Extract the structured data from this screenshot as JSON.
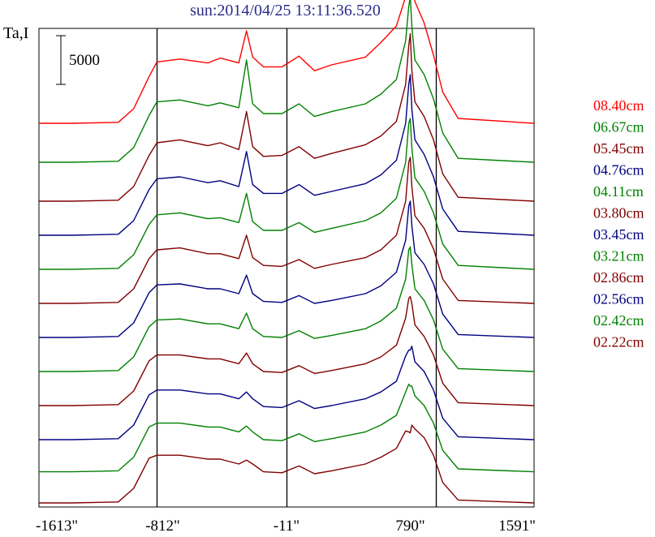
{
  "chart_data": {
    "type": "line",
    "title": "sun:2014/04/25 13:11:36.520",
    "ylabel": "Ta,I",
    "xlabel": "",
    "x_ticks": [
      "-1613\"",
      "-812\"",
      "-11\"",
      "790\"",
      "1591\""
    ],
    "x_tick_values": [
      -1613,
      -812,
      -11,
      790,
      1591
    ],
    "xlim": [
      -1613,
      1591
    ],
    "vertical_markers": [
      -850,
      -11,
      955
    ],
    "scale_bar": {
      "label": "5000",
      "value": 5000
    },
    "legend_placement": "right",
    "colors": {
      "red": "#ff0000",
      "green": "#008000",
      "darkred": "#800000",
      "blue": "#000080"
    },
    "profile_x": [
      -1613,
      -1400,
      -1100,
      -1000,
      -900,
      -850,
      -700,
      -520,
      -440,
      -320,
      -270,
      -230,
      -160,
      -40,
      70,
      170,
      280,
      500,
      600,
      700,
      760,
      780,
      790,
      800,
      820,
      880,
      940,
      1000,
      1100,
      1591
    ],
    "series": [
      {
        "name": "08.40cm",
        "color": "#ff0000",
        "offset": 39000,
        "y": [
          0,
          0,
          100,
          1500,
          4800,
          6300,
          6600,
          6200,
          6700,
          6200,
          9500,
          6800,
          5800,
          5800,
          6900,
          5400,
          6000,
          6800,
          8300,
          10000,
          13000,
          15800,
          16100,
          14800,
          12500,
          10300,
          7000,
          3200,
          500,
          0
        ]
      },
      {
        "name": "06.67cm",
        "color": "#008000",
        "offset": 35000,
        "y": [
          0,
          0,
          100,
          1500,
          4800,
          6200,
          6400,
          5800,
          6100,
          5600,
          10500,
          6000,
          5000,
          5000,
          6000,
          4700,
          5200,
          6000,
          7000,
          8500,
          12500,
          16000,
          17000,
          14000,
          10500,
          9000,
          6500,
          3000,
          400,
          0
        ]
      },
      {
        "name": "05.45cm",
        "color": "#800000",
        "offset": 31000,
        "y": [
          0,
          0,
          100,
          1500,
          4700,
          6000,
          6300,
          5700,
          6000,
          5300,
          9200,
          5600,
          4600,
          4700,
          5600,
          4400,
          4900,
          5800,
          6700,
          8200,
          12000,
          16000,
          17200,
          13500,
          10200,
          8700,
          6300,
          2800,
          400,
          0
        ]
      },
      {
        "name": "04.76cm",
        "color": "#000080",
        "offset": 27500,
        "y": [
          0,
          0,
          100,
          1500,
          4700,
          5800,
          6000,
          5400,
          5600,
          5000,
          8600,
          5200,
          4300,
          4300,
          5200,
          4100,
          4500,
          5300,
          6200,
          7700,
          11500,
          15500,
          16500,
          13000,
          9800,
          8300,
          6000,
          2700,
          400,
          0
        ]
      },
      {
        "name": "04.11cm",
        "color": "#008000",
        "offset": 24000,
        "y": [
          0,
          0,
          100,
          1500,
          4600,
          5600,
          5800,
          5200,
          5300,
          4800,
          7800,
          4900,
          4000,
          4000,
          4800,
          3800,
          4200,
          5000,
          5800,
          7300,
          11000,
          15000,
          15500,
          12500,
          9400,
          8000,
          5800,
          2600,
          400,
          0
        ]
      },
      {
        "name": "03.80cm",
        "color": "#800000",
        "offset": 20500,
        "y": [
          0,
          0,
          100,
          1500,
          4600,
          5500,
          5700,
          5100,
          5100,
          4600,
          7000,
          4700,
          3900,
          3800,
          4500,
          3600,
          4000,
          4700,
          5500,
          7000,
          10500,
          14500,
          15000,
          12000,
          9000,
          7700,
          5600,
          2500,
          300,
          0
        ]
      },
      {
        "name": "03.45cm",
        "color": "#000080",
        "offset": 17000,
        "y": [
          0,
          0,
          100,
          1500,
          4600,
          5400,
          5500,
          5000,
          5000,
          4500,
          6400,
          4500,
          3700,
          3600,
          4300,
          3500,
          3800,
          4500,
          5300,
          6700,
          10000,
          13500,
          14000,
          11500,
          8700,
          7500,
          5500,
          2400,
          300,
          0
        ]
      },
      {
        "name": "03.21cm",
        "color": "#008000",
        "offset": 13500,
        "y": [
          0,
          0,
          100,
          1500,
          4600,
          5300,
          5400,
          4900,
          4900,
          4400,
          6000,
          4400,
          3600,
          3500,
          4200,
          3400,
          3700,
          4400,
          5200,
          6500,
          9500,
          12500,
          12800,
          11000,
          8500,
          7300,
          5300,
          2300,
          300,
          0
        ]
      },
      {
        "name": "02.86cm",
        "color": "#800000",
        "offset": 10000,
        "y": [
          0,
          0,
          100,
          1500,
          4600,
          5200,
          5200,
          4800,
          4800,
          4300,
          5400,
          4300,
          3500,
          3400,
          4100,
          3300,
          3600,
          4300,
          5000,
          6200,
          9000,
          11000,
          11200,
          10500,
          8300,
          7100,
          5200,
          2300,
          300,
          0
        ]
      },
      {
        "name": "02.56cm",
        "color": "#000080",
        "offset": 6500,
        "y": [
          0,
          0,
          100,
          1500,
          4600,
          5100,
          5100,
          4700,
          4700,
          4200,
          4900,
          4200,
          3400,
          3300,
          4000,
          3200,
          3500,
          4200,
          4900,
          6000,
          8600,
          9200,
          9200,
          9600,
          8000,
          7000,
          5100,
          2200,
          300,
          0
        ]
      },
      {
        "name": "02.42cm",
        "color": "#008000",
        "offset": 3200,
        "y": [
          0,
          0,
          100,
          1500,
          4600,
          5000,
          5000,
          4600,
          4600,
          4100,
          4700,
          4100,
          3300,
          3200,
          3900,
          3100,
          3400,
          4100,
          4800,
          5800,
          8200,
          9000,
          8800,
          8800,
          7800,
          6800,
          5000,
          2200,
          300,
          0
        ]
      },
      {
        "name": "02.22cm",
        "color": "#800000",
        "offset": 0,
        "y": [
          0,
          0,
          100,
          1500,
          4600,
          4900,
          4900,
          4500,
          4500,
          4000,
          4400,
          4000,
          3200,
          3100,
          3800,
          3000,
          3300,
          4000,
          4700,
          5600,
          7400,
          7300,
          7200,
          8000,
          7600,
          6700,
          4900,
          2100,
          300,
          0
        ]
      }
    ]
  }
}
